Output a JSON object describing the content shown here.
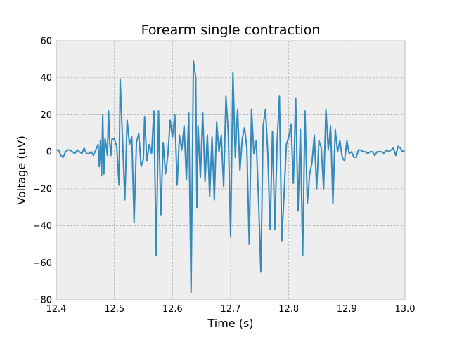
{
  "chart_data": {
    "type": "line",
    "title": "Forearm single contraction",
    "xlabel": "Time (s)",
    "ylabel": "Voltage (uV)",
    "xlim": [
      12.4,
      13.0
    ],
    "ylim": [
      -80,
      60
    ],
    "xticks": [
      12.4,
      12.5,
      12.6,
      12.7,
      12.8,
      12.9,
      13.0
    ],
    "xtick_labels": [
      "12.4",
      "12.5",
      "12.6",
      "12.7",
      "12.8",
      "12.9",
      "13.0"
    ],
    "yticks": [
      -80,
      -60,
      -40,
      -20,
      0,
      20,
      40,
      60
    ],
    "ytick_labels": [
      "−80",
      "−60",
      "−40",
      "−20",
      "0",
      "20",
      "40",
      "60"
    ],
    "grid": true,
    "series": [
      {
        "color": "#348abd",
        "x": [
          12.4,
          12.404,
          12.408,
          12.412,
          12.416,
          12.42,
          12.424,
          12.428,
          12.432,
          12.436,
          12.44,
          12.444,
          12.448,
          12.452,
          12.456,
          12.46,
          12.464,
          12.468,
          12.472,
          12.474,
          12.476,
          12.478,
          12.48,
          12.482,
          12.484,
          12.486,
          12.488,
          12.49,
          12.492,
          12.494,
          12.496,
          12.5,
          12.504,
          12.508,
          12.51,
          12.514,
          12.518,
          12.522,
          12.526,
          12.53,
          12.534,
          12.538,
          12.542,
          12.546,
          12.55,
          12.552,
          12.556,
          12.56,
          12.564,
          12.568,
          12.572,
          12.576,
          12.58,
          12.584,
          12.588,
          12.592,
          12.596,
          12.6,
          12.604,
          12.608,
          12.612,
          12.616,
          12.62,
          12.624,
          12.628,
          12.632,
          12.636,
          12.64,
          12.642,
          12.644,
          12.648,
          12.652,
          12.656,
          12.66,
          12.664,
          12.668,
          12.672,
          12.676,
          12.68,
          12.684,
          12.688,
          12.692,
          12.696,
          12.7,
          12.704,
          12.708,
          12.712,
          12.716,
          12.72,
          12.724,
          12.728,
          12.732,
          12.736,
          12.74,
          12.744,
          12.748,
          12.752,
          12.756,
          12.76,
          12.764,
          12.768,
          12.772,
          12.776,
          12.78,
          12.784,
          12.788,
          12.792,
          12.796,
          12.8,
          12.804,
          12.808,
          12.812,
          12.816,
          12.82,
          12.824,
          12.828,
          12.832,
          12.836,
          12.84,
          12.844,
          12.848,
          12.852,
          12.856,
          12.86,
          12.864,
          12.868,
          12.872,
          12.876,
          12.88,
          12.884,
          12.888,
          12.892,
          12.896,
          12.9,
          12.904,
          12.908,
          12.912,
          12.916,
          12.92,
          12.924,
          12.928,
          12.932,
          12.936,
          12.94,
          12.944,
          12.948,
          12.952,
          12.956,
          12.96,
          12.964,
          12.968,
          12.972,
          12.976,
          12.98,
          12.984,
          12.988,
          12.992,
          12.996,
          13.0
        ],
        "y": [
          1,
          1,
          -2,
          -3,
          0,
          1,
          1,
          0,
          -1,
          1,
          0,
          -1,
          2,
          -1,
          -1,
          0,
          -2,
          1,
          4,
          -8,
          6,
          -13,
          20,
          -12,
          7,
          3,
          -2,
          22,
          5,
          -2,
          7,
          7,
          3,
          -18,
          39,
          8,
          -26,
          17,
          4,
          8,
          -38,
          5,
          10,
          -8,
          -4,
          19,
          -5,
          4,
          -1,
          22,
          -56,
          22,
          -34,
          5,
          -12,
          -2,
          17,
          8,
          20,
          -18,
          9,
          1,
          14,
          -15,
          21,
          -76,
          49,
          40,
          -30,
          14,
          -14,
          21,
          -16,
          9,
          -24,
          8,
          -26,
          16,
          0,
          9,
          -19,
          30,
          10,
          -46,
          43,
          -3,
          23,
          -10,
          7,
          13,
          2,
          -50,
          23,
          -1,
          6,
          -25,
          -65,
          14,
          23,
          -1,
          -42,
          11,
          -42,
          5,
          30,
          -48,
          -23,
          4,
          8,
          15,
          -17,
          29,
          -32,
          12,
          -56,
          22,
          -28,
          -12,
          -6,
          9,
          -20,
          6,
          2,
          -20,
          23,
          1,
          14,
          -28,
          12,
          0,
          6,
          -3,
          -5,
          6,
          -1,
          0,
          -3,
          -3,
          1,
          1,
          0,
          0,
          -1,
          0,
          0,
          -2,
          0,
          0,
          0,
          -1,
          1,
          0,
          1,
          2,
          -2,
          3,
          2,
          0,
          1
        ]
      }
    ]
  }
}
